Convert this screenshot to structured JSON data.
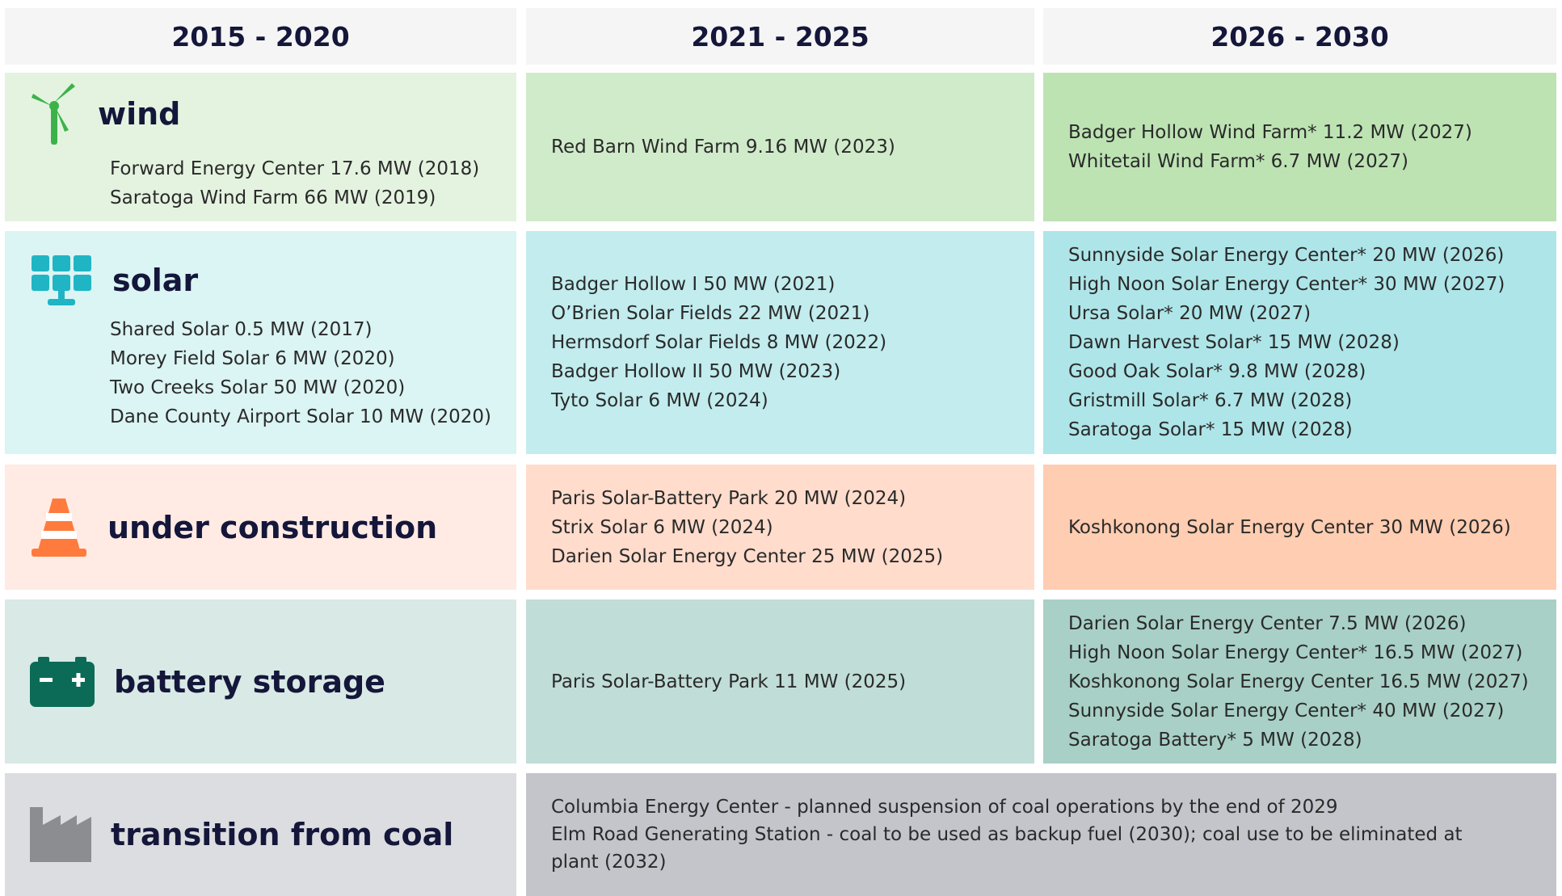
{
  "headers": [
    "2015 - 2020",
    "2021 - 2025",
    "2026 - 2030"
  ],
  "rows": [
    {
      "label": "wind",
      "col1": [
        "Forward Energy Center 17.6 MW (2018)",
        "Saratoga Wind Farm 66 MW (2019)"
      ],
      "col2": [
        "Red Barn Wind Farm 9.16 MW (2023)"
      ],
      "col3": [
        "Badger Hollow Wind Farm* 11.2 MW (2027)",
        "Whitetail Wind Farm* 6.7 MW (2027)"
      ]
    },
    {
      "label": "solar",
      "col1": [
        "Shared Solar 0.5 MW (2017)",
        "Morey Field Solar 6 MW (2020)",
        "Two Creeks Solar 50 MW (2020)",
        "Dane County Airport Solar 10 MW (2020)"
      ],
      "col2": [
        "Badger Hollow I 50 MW (2021)",
        "O’Brien Solar Fields 22 MW (2021)",
        "Hermsdorf Solar Fields 8 MW (2022)",
        "Badger Hollow II 50 MW (2023)",
        "Tyto Solar 6 MW (2024)"
      ],
      "col3": [
        "Sunnyside Solar Energy Center* 20 MW (2026)",
        "High Noon Solar Energy Center* 30 MW (2027)",
        "Ursa Solar* 20 MW (2027)",
        "Dawn Harvest Solar* 15 MW (2028)",
        "Good Oak Solar* 9.8 MW (2028)",
        "Gristmill Solar* 6.7 MW (2028)",
        "Saratoga Solar* 15 MW (2028)"
      ]
    },
    {
      "label": "under construction",
      "col1": [],
      "col2": [
        "Paris Solar-Battery Park 20 MW (2024)",
        "Strix Solar 6 MW (2024)",
        "Darien Solar Energy Center 25 MW (2025)"
      ],
      "col3": [
        "Koshkonong Solar Energy Center 30 MW (2026)"
      ]
    },
    {
      "label": "battery storage",
      "col1": [],
      "col2": [
        "Paris Solar-Battery Park 11 MW (2025)"
      ],
      "col3": [
        "Darien Solar Energy Center 7.5 MW (2026)",
        "High Noon Solar Energy Center* 16.5 MW (2027)",
        "Koshkonong Solar Energy Center 16.5 MW (2027)",
        "Sunnyside Solar Energy Center* 40 MW (2027)",
        "Saratoga Battery* 5 MW (2028)"
      ]
    }
  ],
  "coal": {
    "label": "transition from coal",
    "lines": [
      "Columbia Energy Center - planned suspension of coal operations by the end of 2029",
      "Elm Road Generating Station - coal to be used as backup fuel (2030); coal use to be eliminated at plant (2032)"
    ]
  }
}
